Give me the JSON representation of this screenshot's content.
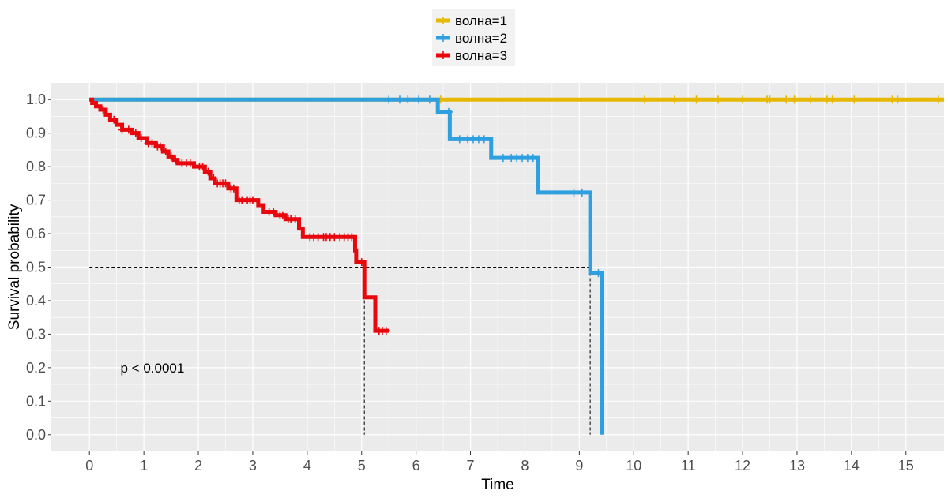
{
  "chart_data": {
    "type": "line",
    "title": "",
    "xlabel": "Time",
    "ylabel": "Survival probability",
    "xlim": [
      -0.7,
      15.7
    ],
    "ylim": [
      -0.05,
      1.05
    ],
    "x_ticks": [
      0,
      1,
      2,
      3,
      4,
      5,
      6,
      7,
      8,
      9,
      10,
      11,
      12,
      13,
      14,
      15
    ],
    "y_ticks": [
      0.0,
      0.1,
      0.2,
      0.3,
      0.4,
      0.5,
      0.6,
      0.7,
      0.8,
      0.9,
      1.0
    ],
    "grid": true,
    "legend_position": "top",
    "annotation": "p < 0.0001",
    "median_lines": [
      {
        "series": "волна=3",
        "x": 5.05,
        "y": 0.5
      },
      {
        "series": "волна=2",
        "x": 9.2,
        "y": 0.5
      }
    ],
    "series": [
      {
        "name": "волна=1",
        "color": "#E7B800",
        "steps": [
          [
            0,
            1.0
          ],
          [
            15.7,
            1.0
          ]
        ],
        "censor_x": [
          6.45,
          10.2,
          10.75,
          11.15,
          11.55,
          12.0,
          12.45,
          12.5,
          12.8,
          12.95,
          13.25,
          13.55,
          13.65,
          14.05,
          14.75,
          14.85,
          15.6
        ]
      },
      {
        "name": "волна=2",
        "color": "#2E9FDF",
        "steps": [
          [
            0,
            1.0
          ],
          [
            6.4,
            1.0
          ],
          [
            6.4,
            0.963
          ],
          [
            6.62,
            0.963
          ],
          [
            6.62,
            0.882
          ],
          [
            7.38,
            0.882
          ],
          [
            7.38,
            0.826
          ],
          [
            8.24,
            0.826
          ],
          [
            8.24,
            0.723
          ],
          [
            9.2,
            0.723
          ],
          [
            9.2,
            0.482
          ],
          [
            9.42,
            0.482
          ],
          [
            9.42,
            0.0
          ]
        ],
        "censor_x": [
          5.5,
          5.7,
          5.85,
          6.05,
          6.25,
          6.6,
          6.8,
          6.95,
          7.05,
          7.15,
          7.25,
          7.6,
          7.75,
          7.85,
          7.95,
          8.05,
          8.15,
          8.9,
          9.05,
          9.35
        ]
      },
      {
        "name": "волна=3",
        "color": "#E7070C",
        "steps": [
          [
            0.0,
            1.0
          ],
          [
            0.05,
            0.99
          ],
          [
            0.12,
            0.98
          ],
          [
            0.2,
            0.97
          ],
          [
            0.3,
            0.955
          ],
          [
            0.38,
            0.94
          ],
          [
            0.5,
            0.925
          ],
          [
            0.6,
            0.91
          ],
          [
            0.78,
            0.9
          ],
          [
            0.9,
            0.885
          ],
          [
            1.05,
            0.87
          ],
          [
            1.22,
            0.86
          ],
          [
            1.35,
            0.845
          ],
          [
            1.45,
            0.83
          ],
          [
            1.55,
            0.82
          ],
          [
            1.62,
            0.81
          ],
          [
            1.92,
            0.8
          ],
          [
            2.12,
            0.785
          ],
          [
            2.22,
            0.765
          ],
          [
            2.3,
            0.75
          ],
          [
            2.55,
            0.735
          ],
          [
            2.7,
            0.7
          ],
          [
            3.1,
            0.685
          ],
          [
            3.2,
            0.665
          ],
          [
            3.42,
            0.655
          ],
          [
            3.6,
            0.643
          ],
          [
            3.85,
            0.615
          ],
          [
            3.92,
            0.59
          ],
          [
            4.88,
            0.55
          ],
          [
            4.9,
            0.515
          ],
          [
            5.05,
            0.41
          ],
          [
            5.25,
            0.31
          ],
          [
            5.5,
            0.31
          ]
        ],
        "censor_x": [
          0.25,
          0.45,
          0.6,
          0.72,
          0.85,
          0.95,
          1.08,
          1.15,
          1.25,
          1.3,
          1.4,
          1.5,
          1.58,
          1.7,
          1.78,
          1.85,
          2.02,
          2.08,
          2.18,
          2.28,
          2.35,
          2.4,
          2.45,
          2.5,
          2.6,
          2.65,
          2.75,
          2.8,
          2.9,
          2.95,
          3.0,
          3.3,
          3.38,
          3.5,
          3.55,
          3.65,
          3.7,
          3.78,
          4.05,
          4.12,
          4.2,
          4.3,
          4.35,
          4.42,
          4.5,
          4.6,
          4.68,
          4.75,
          4.82,
          5.0,
          5.32,
          5.38,
          5.45
        ]
      }
    ]
  }
}
